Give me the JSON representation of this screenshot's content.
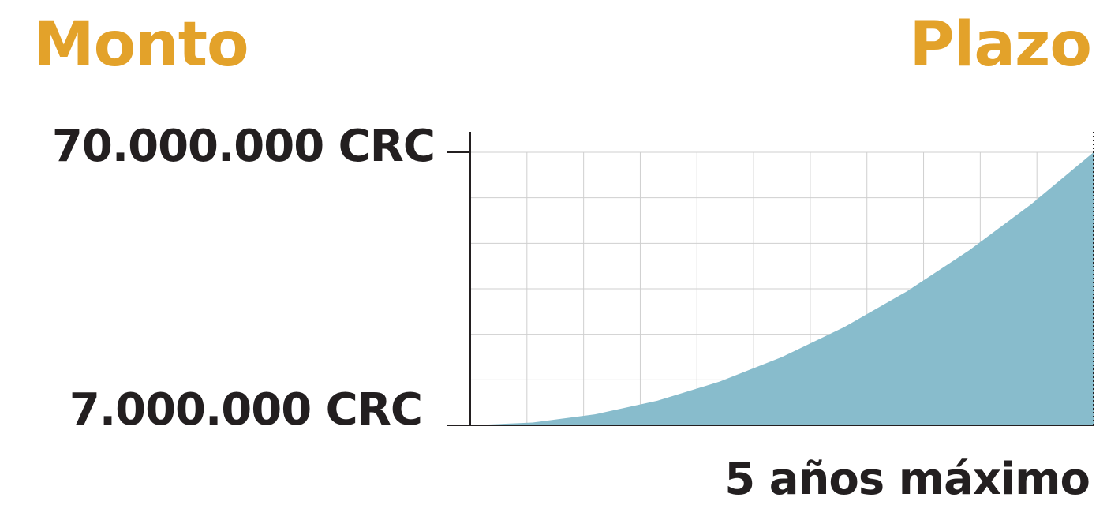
{
  "colors": {
    "heading": "#e3a22a",
    "text": "#231f20",
    "area_fill": "#88bccc",
    "grid": "#cfcfcf",
    "axis": "#231f20"
  },
  "headings": {
    "left": "Monto",
    "right": "Plazo"
  },
  "chart_data": {
    "type": "area",
    "title": "",
    "xlabel": "5 años máximo",
    "ylabel": "",
    "y_tick_labels": [
      "70.000.000 CRC",
      "7.000.000 CRC"
    ],
    "ylim": [
      7000000,
      70000000
    ],
    "xlim": [
      0,
      5
    ],
    "x_unit": "años",
    "grid": true,
    "x_max_marker": "dotted",
    "series": [
      {
        "x": [
          0,
          0.5,
          1,
          1.5,
          2,
          2.5,
          3,
          3.5,
          4,
          4.5,
          5
        ],
        "values": [
          7000000,
          7630000,
          9520000,
          12670000,
          17080000,
          22750000,
          29680000,
          37870000,
          47320000,
          58030000,
          70000000
        ]
      }
    ]
  }
}
